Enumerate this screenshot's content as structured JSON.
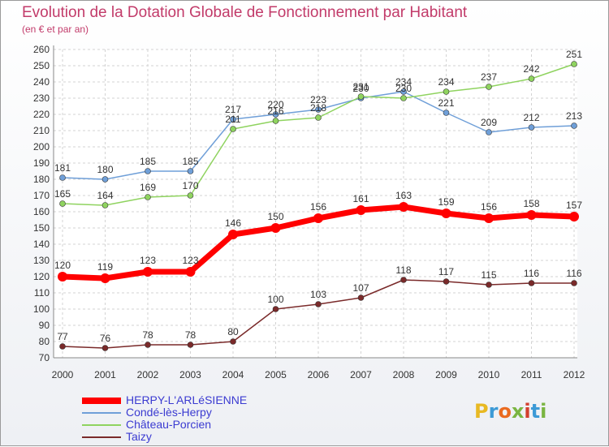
{
  "title": "Evolution de la Dotation Globale de Fonctionnement par Habitant",
  "subtitle": "(en € et par an)",
  "logo": {
    "text": "Proxiti",
    "colors": [
      "#e8b923",
      "#3c9ad6",
      "#ea6a1f",
      "#7ab541",
      "#d33f2f",
      "#3c9ad6",
      "#7ab541"
    ]
  },
  "chart_data": {
    "type": "line",
    "x": [
      "2000",
      "2001",
      "2002",
      "2003",
      "2004",
      "2005",
      "2006",
      "2007",
      "2008",
      "2009",
      "2010",
      "2011",
      "2012"
    ],
    "ylim": [
      70,
      260
    ],
    "yticks": [
      70,
      80,
      90,
      100,
      110,
      120,
      130,
      140,
      150,
      160,
      170,
      180,
      190,
      200,
      210,
      220,
      230,
      240,
      250,
      260
    ],
    "grid": true,
    "legend_position": "bottom-left",
    "series": [
      {
        "name": "HERPY-L'ARLéSIENNE",
        "color": "#ff0000",
        "width": 7,
        "values": [
          120,
          119,
          123,
          123,
          146,
          150,
          156,
          161,
          163,
          159,
          156,
          158,
          157
        ]
      },
      {
        "name": "Condé-lès-Herpy",
        "color": "#6f9fd8",
        "width": 1.5,
        "values": [
          181,
          180,
          185,
          185,
          217,
          220,
          223,
          230,
          234,
          221,
          209,
          212,
          213
        ]
      },
      {
        "name": "Château-Porcien",
        "color": "#8fd35f",
        "width": 1.5,
        "values": [
          165,
          164,
          169,
          170,
          211,
          216,
          218,
          231,
          230,
          234,
          237,
          242,
          251
        ]
      },
      {
        "name": "Taizy",
        "color": "#7a2a2a",
        "width": 1.5,
        "values": [
          77,
          76,
          78,
          78,
          80,
          100,
          103,
          107,
          118,
          117,
          115,
          116,
          116
        ]
      }
    ]
  }
}
